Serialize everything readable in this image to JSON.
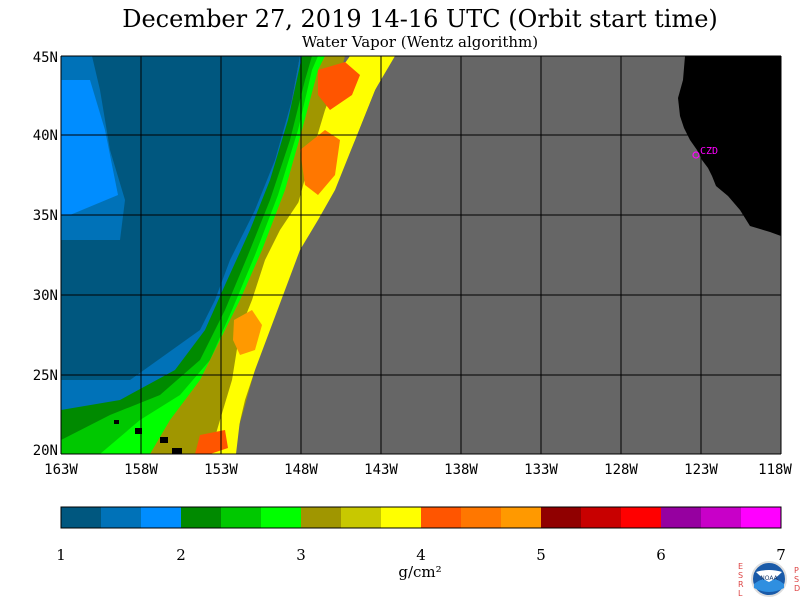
{
  "title": "December 27, 2019  14-16 UTC  (Orbit start time)",
  "subtitle": "Water Vapor (Wentz algorithm)",
  "map": {
    "lat_labels": [
      "45N",
      "40N",
      "35N",
      "30N",
      "25N",
      "20N"
    ],
    "lon_labels": [
      "163W",
      "158W",
      "153W",
      "148W",
      "143W",
      "138W",
      "133W",
      "128W",
      "123W",
      "118W"
    ],
    "station_label": "CZD",
    "no_data_color": "#666666",
    "land_color": "#000000"
  },
  "colorbar": {
    "ticks": [
      "1",
      "2",
      "3",
      "4",
      "5",
      "6",
      "7"
    ],
    "units": "g/cm²",
    "colors": [
      "#00577f",
      "#0072b8",
      "#008dff",
      "#008a00",
      "#00c800",
      "#00ff00",
      "#a09600",
      "#c8c800",
      "#ffff00",
      "#ff5500",
      "#ff7700",
      "#ff9900",
      "#900000",
      "#c80000",
      "#ff0000",
      "#9600a0",
      "#c800c8",
      "#ff00ff"
    ]
  },
  "logo": {
    "letters_left": [
      "E",
      "S",
      "R",
      "L"
    ],
    "letters_right": [
      "P",
      "S",
      "D"
    ],
    "badge_text": "NOAA"
  }
}
